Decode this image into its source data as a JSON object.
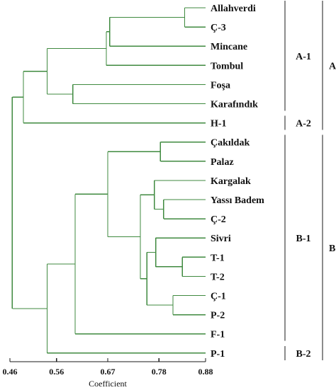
{
  "chart_data": {
    "type": "dendrogram",
    "leaves": [
      "Allahverdi",
      "Ç-3",
      "Mincane",
      "Tombul",
      "Foşa",
      "Karafındık",
      "H-1",
      "Çakıldak",
      "Palaz",
      "Kargalak",
      "Yassı Badem",
      "Ç-2",
      "Sivri",
      "T-1",
      "T-2",
      "Ç-1",
      "P-2",
      "F-1",
      "P-1"
    ],
    "merges": [
      {
        "id": "m1",
        "children": [
          "Allahverdi",
          "Ç-3"
        ],
        "coefficient": 0.835
      },
      {
        "id": "m2",
        "children": [
          "m1",
          "Mincane"
        ],
        "coefficient": 0.674
      },
      {
        "id": "m3",
        "children": [
          "m2",
          "Tombul"
        ],
        "coefficient": 0.667
      },
      {
        "id": "m4",
        "children": [
          "Foşa",
          "Karafındık"
        ],
        "coefficient": 0.595
      },
      {
        "id": "m5",
        "children": [
          "m3",
          "m4"
        ],
        "coefficient": 0.54
      },
      {
        "id": "m6",
        "children": [
          "m5",
          "H-1"
        ],
        "coefficient": 0.489
      },
      {
        "id": "m7",
        "children": [
          "Çakıldak",
          "Palaz"
        ],
        "coefficient": 0.783
      },
      {
        "id": "m8",
        "children": [
          "Yassı Badem",
          "Ç-2"
        ],
        "coefficient": 0.79
      },
      {
        "id": "m9",
        "children": [
          "Kargalak",
          "m8"
        ],
        "coefficient": 0.77
      },
      {
        "id": "m10",
        "children": [
          "T-1",
          "T-2"
        ],
        "coefficient": 0.83
      },
      {
        "id": "m11",
        "children": [
          "Sivri",
          "m10"
        ],
        "coefficient": 0.773
      },
      {
        "id": "m12",
        "children": [
          "Ç-1",
          "P-2"
        ],
        "coefficient": 0.81
      },
      {
        "id": "m13",
        "children": [
          "m11",
          "m12"
        ],
        "coefficient": 0.754
      },
      {
        "id": "m14",
        "children": [
          "m9",
          "m13"
        ],
        "coefficient": 0.74
      },
      {
        "id": "m15",
        "children": [
          "m7",
          "m14"
        ],
        "coefficient": 0.67
      },
      {
        "id": "m16",
        "children": [
          "m15",
          "F-1"
        ],
        "coefficient": 0.6
      },
      {
        "id": "m17",
        "children": [
          "m16",
          "P-1"
        ],
        "coefficient": 0.54
      },
      {
        "id": "m18",
        "children": [
          "m6",
          "m17"
        ],
        "coefficient": 0.465
      }
    ],
    "clusters": [
      {
        "label": "A-1",
        "from": "Allahverdi",
        "to": "Karafındık",
        "level": 1
      },
      {
        "label": "A-2",
        "from": "H-1",
        "to": "H-1",
        "level": 1
      },
      {
        "label": "B-1",
        "from": "Çakıldak",
        "to": "F-1",
        "level": 1
      },
      {
        "label": "B-2",
        "from": "P-1",
        "to": "P-1",
        "level": 1
      },
      {
        "label": "A",
        "from": "Allahverdi",
        "to": "H-1",
        "level": 2
      },
      {
        "label": "B",
        "from": "Çakıldak",
        "to": "P-1",
        "level": 2
      }
    ],
    "x_ticks": [
      "0.46",
      "0.56",
      "0.67",
      "0.78",
      "0.88"
    ],
    "xlim": [
      0.46,
      0.88
    ],
    "xlabel": "Coefficient"
  },
  "colors": {
    "branch": "#3f8a3f",
    "text": "#111111"
  }
}
